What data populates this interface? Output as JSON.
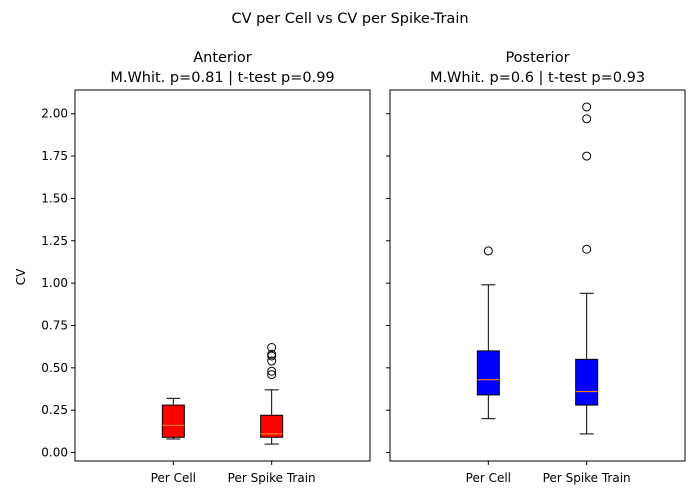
{
  "chart_data": {
    "type": "box",
    "suptitle": "CV per Cell vs CV per Spike-Train",
    "ylabel": "CV",
    "ylim": [
      -0.05,
      2.14
    ],
    "y_ticks": [
      "0.00",
      "0.25",
      "0.50",
      "0.75",
      "1.00",
      "1.25",
      "1.50",
      "1.75",
      "2.00"
    ],
    "categories": [
      "Per Cell",
      "Per Spike Train"
    ],
    "median_color": "#ff7f0e",
    "shared_y": true,
    "panels": [
      {
        "title_line1": "Anterior",
        "title_line2": "M.Whit. p=0.81  |  t-test p=0.99",
        "box_color": "#ff0000",
        "boxes": [
          {
            "category": "Per Cell",
            "whisker_low": 0.08,
            "q1": 0.09,
            "median": 0.16,
            "q3": 0.28,
            "whisker_high": 0.32,
            "outliers": []
          },
          {
            "category": "Per Spike Train",
            "whisker_low": 0.05,
            "q1": 0.09,
            "median": 0.11,
            "q3": 0.22,
            "whisker_high": 0.37,
            "outliers": [
              0.46,
              0.48,
              0.54,
              0.57,
              0.58,
              0.62
            ]
          }
        ]
      },
      {
        "title_line1": "Posterior",
        "title_line2": "M.Whit. p=0.6  |  t-test p=0.93",
        "box_color": "#0000ff",
        "boxes": [
          {
            "category": "Per Cell",
            "whisker_low": 0.2,
            "q1": 0.34,
            "median": 0.43,
            "q3": 0.6,
            "whisker_high": 0.99,
            "outliers": [
              1.19
            ]
          },
          {
            "category": "Per Spike Train",
            "whisker_low": 0.11,
            "q1": 0.28,
            "median": 0.36,
            "q3": 0.55,
            "whisker_high": 0.94,
            "outliers": [
              1.2,
              1.75,
              1.97,
              2.04
            ]
          }
        ]
      }
    ]
  }
}
